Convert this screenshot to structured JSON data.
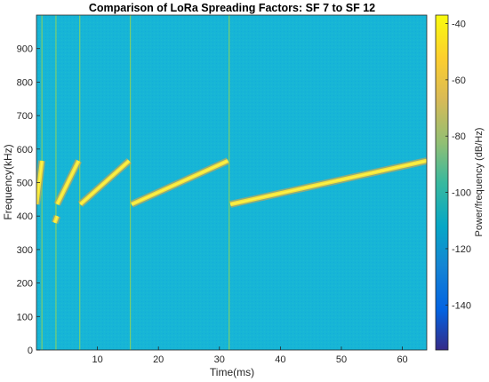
{
  "chart_data": {
    "type": "heatmap",
    "title": "Comparison of LoRa Spreading Factors: SF 7 to SF 12",
    "xlabel": "Time(ms)",
    "ylabel": "Frequency(kHz)",
    "colorbar_label": "Power/frequency (dB/Hz)",
    "xlim": [
      0,
      64
    ],
    "ylim": [
      0,
      1000
    ],
    "x_ticks": [
      "10",
      "20",
      "30",
      "40",
      "50",
      "60"
    ],
    "y_ticks": [
      "0",
      "100",
      "200",
      "300",
      "400",
      "500",
      "600",
      "700",
      "800",
      "900"
    ],
    "colorbar_range": [
      -156,
      -37
    ],
    "colorbar_ticks": [
      "-40",
      "-60",
      "-80",
      "-100",
      "-120",
      "-140"
    ],
    "background_level_db": -100,
    "chirp_level_db": -55,
    "chirps": [
      {
        "spreading_factor": 7,
        "t_start": 0.0,
        "t_end": 0.9,
        "f_start": 435,
        "f_end": 565
      },
      {
        "spreading_factor": 8,
        "t_start": 3.0,
        "t_end": 3.4,
        "f_start": 380,
        "f_end": 400
      },
      {
        "spreading_factor": 8,
        "t_start": 3.4,
        "t_end": 6.9,
        "f_start": 435,
        "f_end": 565
      },
      {
        "spreading_factor": 9,
        "t_start": 7.2,
        "t_end": 15.2,
        "f_start": 435,
        "f_end": 565
      },
      {
        "spreading_factor": 10,
        "t_start": 15.6,
        "t_end": 31.4,
        "f_start": 435,
        "f_end": 565
      },
      {
        "spreading_factor": 11,
        "t_start": 31.8,
        "t_end": 64.0,
        "f_start": 435,
        "f_end": 565
      }
    ],
    "boundaries_ms": [
      0.9,
      3.2,
      7.1,
      15.4,
      31.6
    ],
    "colormap": "parula",
    "grid": false
  }
}
